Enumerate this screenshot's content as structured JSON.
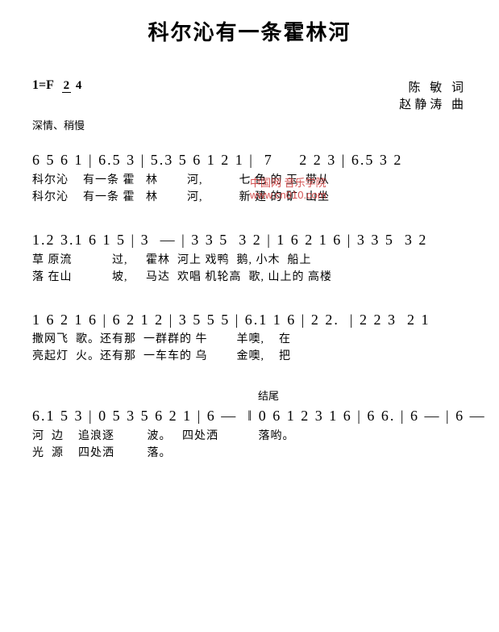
{
  "title": "科尔沁有一条霍林河",
  "key": "1=F",
  "time_sig": {
    "num": "2",
    "den": "4"
  },
  "tempo": "深情、稍慢",
  "credits": {
    "lyricist": "陈  敏 词",
    "composer": "赵静涛 曲"
  },
  "watermark": {
    "line1": "中国网 音乐学院",
    "line2": "www.cn010.com"
  },
  "ending_label": "结尾",
  "staves": [
    {
      "notes": "6 5 6 1 | 6.5 3 | 5.3 5 6 1 2 1 |  7     2 2 3 | 6.5 3 2",
      "lyrics_a": "科尔沁    有一条 霍   林        河,          七 色 的 玉  带从",
      "lyrics_b": "科尔沁    有一条 霍   林        河,          新 建 的 矿  山坐"
    },
    {
      "notes": "1.2 3.1 6 1 5 | 3  — | 3 3 5  3 2 | 1 6 2 1 6 | 3 3 5  3 2",
      "lyrics_a": "草 原流           过,     霍林  河上 戏鸭  鹅, 小木  船上",
      "lyrics_b": "落 在山           坡,     马达  欢唱 机轮高  歌, 山上的 高楼"
    },
    {
      "notes": "1 6 2 1 6 | 6 2 1 2 | 3 5 5 5 | 6.1 1 6 | 2 2.  | 2 2 3  2 1",
      "lyrics_a": "撒网飞  歌。还有那  一群群的 牛        羊噢,    在",
      "lyrics_b": "亮起灯  火。还有那  一车车的 乌        金噢,    把"
    },
    {
      "notes": "6.1 5 3 | 0 5 3 5 6 2 1 | 6 —  ‖ 0 6 1 2 3 1 6 | 6 6. | 6 — | 6 —",
      "lyrics_a": "河  边    追浪逐         波。   四处洒           落哟。",
      "lyrics_b": "光  源    四处洒         落。"
    }
  ],
  "colors": {
    "text": "#000000",
    "background": "#ffffff",
    "watermark": "#cc3333"
  }
}
